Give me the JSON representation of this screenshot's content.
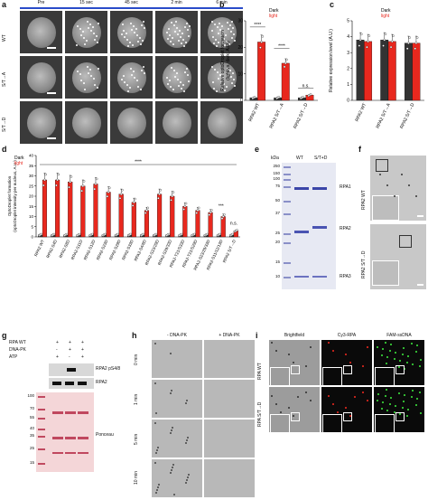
{
  "panels": {
    "a": "a",
    "b": "b",
    "c": "c",
    "d": "d",
    "e": "e",
    "f": "f",
    "g": "g",
    "h": "h",
    "i": "i"
  },
  "panel_a": {
    "time_labels": [
      "Pre",
      "15 sec",
      "45 sec",
      "2 min",
      "6 min"
    ],
    "row_labels": [
      "WT",
      "S/T→A",
      "S/T→D"
    ]
  },
  "legend": {
    "dark": "Dark",
    "light": "light",
    "dark_color": "#333333",
    "light_color": "#e8281e"
  },
  "chart_data": [
    {
      "panel": "b",
      "type": "bar",
      "ylabel": "Relative optoDroplet formation\n(light vs. dark, A.U.)",
      "ylim": [
        0,
        30
      ],
      "yticks": [
        0,
        10,
        20,
        30
      ],
      "categories": [
        "RPA2 WT",
        "RPA2 S/T→A",
        "RPA2 S/T→D"
      ],
      "series": [
        {
          "name": "Dark",
          "values": [
            1,
            1,
            1
          ]
        },
        {
          "name": "light",
          "values": [
            22,
            14,
            2
          ]
        }
      ],
      "annotations": [
        "****",
        "****",
        "n.s."
      ]
    },
    {
      "panel": "c",
      "type": "bar",
      "ylabel": "Relative expression level (A.U.)",
      "ylim": [
        0,
        5
      ],
      "yticks": [
        0,
        1,
        2,
        3,
        4,
        5
      ],
      "categories": [
        "RPA2 WT",
        "RPA2 S/T→A",
        "RPA2 S/T→D"
      ],
      "series": [
        {
          "name": "Dark",
          "values": [
            3.8,
            3.8,
            3.6
          ]
        },
        {
          "name": "light",
          "values": [
            3.7,
            3.7,
            3.6
          ]
        }
      ]
    },
    {
      "panel": "d",
      "type": "bar",
      "ylabel": "OptoDroplet formation\n(optoDroplet intensity per nucleus, A.U.)",
      "ylim": [
        0,
        40
      ],
      "yticks": [
        0,
        5,
        10,
        15,
        20,
        25,
        30,
        35,
        40
      ],
      "categories": [
        "RPA2 WT",
        "RPA2-S4D",
        "RPA2-S8D",
        "RPA2-S11D",
        "RPA2-S12D",
        "RPA2-S23D",
        "RPA2-S29D",
        "RPA2-S33D",
        "RPA2-S4/8D",
        "RPA2-S23/29D",
        "RPA2-S29/33D",
        "RPA2-T21/S33D",
        "RPA2-T21/S29D",
        "RPA2-S23/29/33D",
        "RPA2-S11/12/13D",
        "RPA2 S/T→D"
      ],
      "series": [
        {
          "name": "Dark",
          "values": [
            1,
            1,
            1,
            1,
            1,
            1,
            1,
            1,
            1,
            1,
            1,
            1,
            1,
            1,
            1,
            1
          ]
        },
        {
          "name": "light",
          "values": [
            28,
            28,
            27,
            25,
            26,
            22,
            21,
            17,
            13,
            21,
            20,
            15,
            13,
            12,
            10,
            3
          ]
        }
      ],
      "annotations": [
        "****",
        "***",
        "n.s."
      ]
    }
  ],
  "panel_e": {
    "kda_label": "kDa",
    "lanes": [
      "WT",
      "S/T+D"
    ],
    "markers": [
      "250",
      "150",
      "100",
      "75",
      "50",
      "37",
      "25",
      "20",
      "15",
      "10"
    ],
    "bands": [
      "RPA1",
      "RPA2",
      "RPA3"
    ]
  },
  "panel_f": {
    "rows": [
      "RPA2 WT",
      "RPA2 S/T→D"
    ]
  },
  "panel_g": {
    "rows": [
      "RPA WT",
      "DNA-PK",
      "ATP"
    ],
    "row_values": [
      [
        "+",
        "+",
        "+"
      ],
      [
        "-",
        "+",
        "+"
      ],
      [
        "+",
        "-",
        "+"
      ]
    ],
    "blots": [
      "RPA2 pS4/8",
      "RPA2",
      "Ponceau"
    ],
    "markers": [
      "100",
      "70",
      "55",
      "40",
      "35",
      "25",
      "15"
    ]
  },
  "panel_h": {
    "cols": [
      "- DNA-PK",
      "+ DNA-PK"
    ],
    "times": [
      "0 min",
      "1 min",
      "5 min",
      "10 min"
    ]
  },
  "panel_i": {
    "cols": [
      "Brightfield",
      "Cy3-RPA",
      "FAM-ssDNA"
    ],
    "rows": [
      "RPA WT",
      "RPA S/T→D"
    ]
  }
}
